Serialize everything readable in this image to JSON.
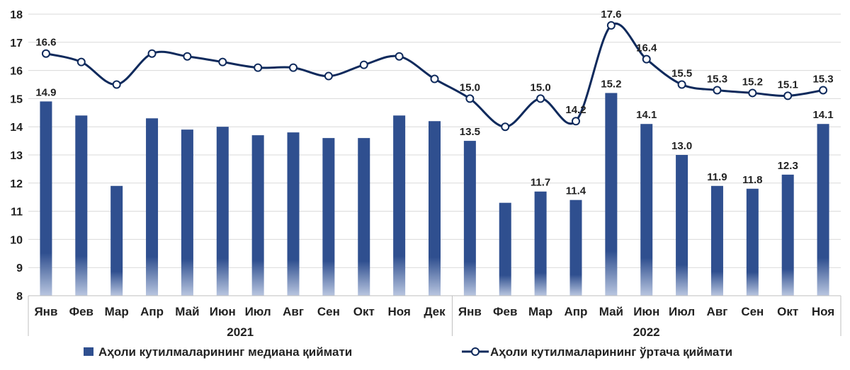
{
  "chart_data": {
    "type": "bar",
    "categories": [
      "Янв",
      "Фев",
      "Мар",
      "Апр",
      "Май",
      "Июн",
      "Июл",
      "Авг",
      "Сен",
      "Окт",
      "Ноя",
      "Дек",
      "Янв",
      "Фев",
      "Мар",
      "Апр",
      "Май",
      "Июн",
      "Июл",
      "Авг",
      "Сен",
      "Окт",
      "Ноя"
    ],
    "groups": [
      {
        "label": "2021",
        "count": 12
      },
      {
        "label": "2022",
        "count": 11
      }
    ],
    "ylim": [
      8,
      18
    ],
    "yticks": [
      8,
      9,
      10,
      11,
      12,
      13,
      14,
      15,
      16,
      17,
      18
    ],
    "grid": "horizontal",
    "legend": "bottom",
    "series": [
      {
        "name": "Аҳоли кутилмаларининг медиана қиймати",
        "type": "bar",
        "color": "#2f4f8f",
        "values": [
          14.9,
          14.4,
          11.9,
          14.3,
          13.9,
          14.0,
          13.7,
          13.8,
          13.6,
          13.6,
          14.4,
          14.2,
          13.5,
          11.3,
          11.7,
          11.4,
          15.2,
          14.1,
          13.0,
          11.9,
          11.8,
          12.3,
          14.1
        ],
        "labels": [
          "14.9",
          "",
          "",
          "",
          "",
          "",
          "",
          "",
          "",
          "",
          "",
          "",
          "13.5",
          "",
          "11.7",
          "11.4",
          "15.2",
          "14.1",
          "13.0",
          "11.9",
          "11.8",
          "12.3",
          "14.1"
        ]
      },
      {
        "name": "Аҳоли кутилмаларининг ўртача қиймати",
        "type": "line",
        "color": "#0f2a5c",
        "values": [
          16.6,
          16.3,
          15.5,
          16.6,
          16.5,
          16.3,
          16.1,
          16.1,
          15.8,
          16.2,
          16.5,
          15.7,
          15.0,
          14.0,
          15.0,
          14.2,
          17.6,
          16.4,
          15.5,
          15.3,
          15.2,
          15.1,
          15.3
        ],
        "labels": [
          "16.6",
          "",
          "",
          "",
          "",
          "",
          "",
          "",
          "",
          "",
          "",
          "",
          "15.0",
          "",
          "15.0",
          "14.2",
          "17.6",
          "16.4",
          "15.5",
          "15.3",
          "15.2",
          "15.1",
          "15.3"
        ]
      }
    ]
  }
}
